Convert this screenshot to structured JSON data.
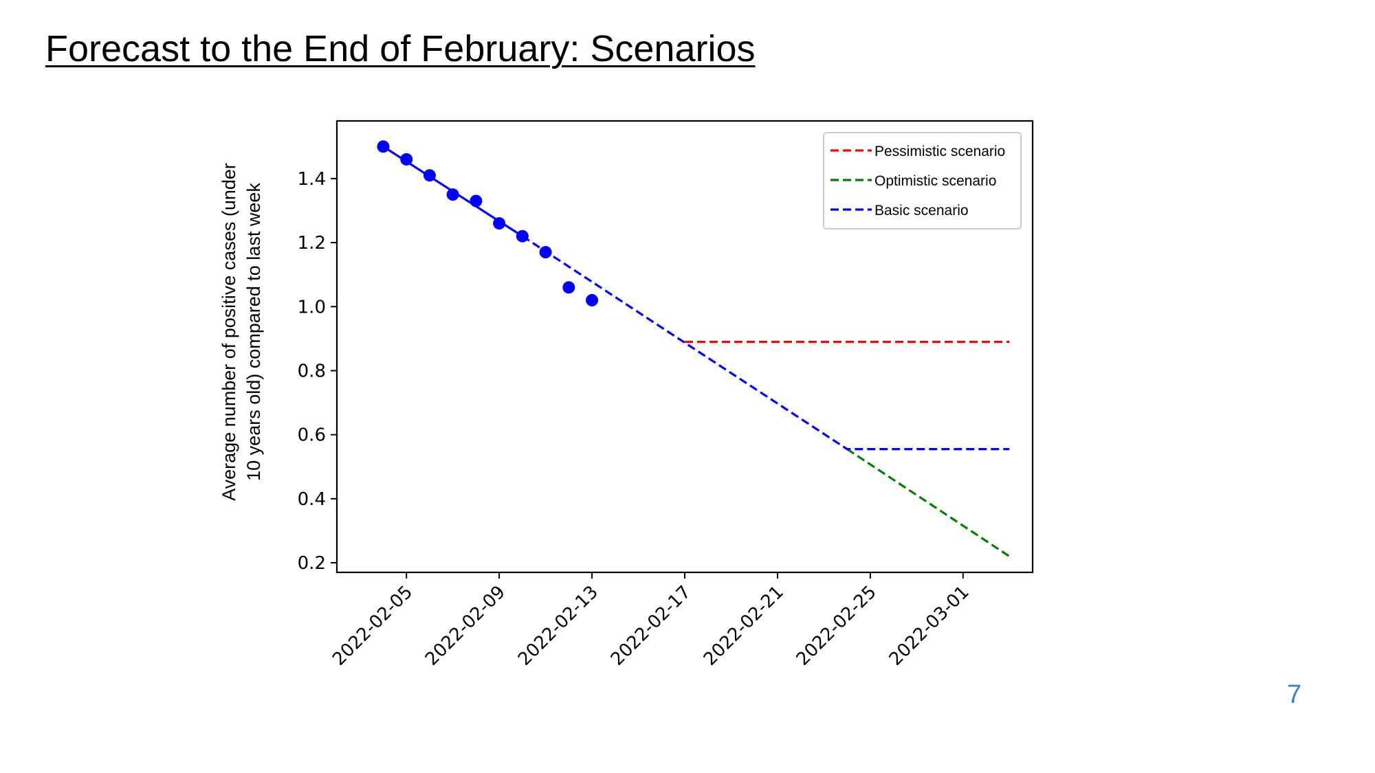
{
  "slide": {
    "title": "Forecast to the End of February: Scenarios",
    "page_number": "7"
  },
  "colors": {
    "observed": "#0000ff",
    "pessimistic": "#ff0000",
    "optimistic": "#008000",
    "basic": "#0000ff"
  },
  "chart_data": {
    "type": "line",
    "title": "",
    "xlabel": "",
    "ylabel": "Average number of positive cases (under 10 years old) compared to last week",
    "ylabel_lines": [
      "Average number of positive cases (under",
      "10 years old) compared to last week"
    ],
    "xlim": [
      "2022-02-02",
      "2022-03-04"
    ],
    "ylim": [
      0.17,
      1.58
    ],
    "x_ticks": [
      "2022-02-05",
      "2022-02-09",
      "2022-02-13",
      "2022-02-17",
      "2022-02-21",
      "2022-02-25",
      "2022-03-01"
    ],
    "y_ticks": [
      0.2,
      0.4,
      0.6,
      0.8,
      1.0,
      1.2,
      1.4
    ],
    "y_tick_labels": [
      "0.2",
      "0.4",
      "0.6",
      "0.8",
      "1.0",
      "1.2",
      "1.4"
    ],
    "legend_position": "top-right",
    "grid": false,
    "observed_points": {
      "x": [
        "2022-02-04",
        "2022-02-05",
        "2022-02-06",
        "2022-02-07",
        "2022-02-08",
        "2022-02-09",
        "2022-02-10",
        "2022-02-11",
        "2022-02-12",
        "2022-02-13"
      ],
      "y": [
        1.5,
        1.46,
        1.41,
        1.35,
        1.33,
        1.26,
        1.22,
        1.17,
        1.06,
        1.02
      ]
    },
    "fit_line": {
      "x": [
        "2022-02-04",
        "2022-02-10"
      ],
      "y": [
        1.5,
        1.22
      ]
    },
    "series": [
      {
        "name": "Pessimistic scenario",
        "style": "dashed",
        "x": [
          "2022-02-17",
          "2022-03-03"
        ],
        "y": [
          0.89,
          0.89
        ]
      },
      {
        "name": "Optimistic scenario",
        "style": "dashed",
        "x": [
          "2022-02-24",
          "2022-03-03"
        ],
        "y": [
          0.555,
          0.22
        ]
      },
      {
        "name": "Basic scenario",
        "style": "dashed",
        "x": [
          "2022-02-10",
          "2022-02-24",
          "2022-03-03"
        ],
        "y": [
          1.22,
          0.555,
          0.555
        ]
      }
    ]
  }
}
